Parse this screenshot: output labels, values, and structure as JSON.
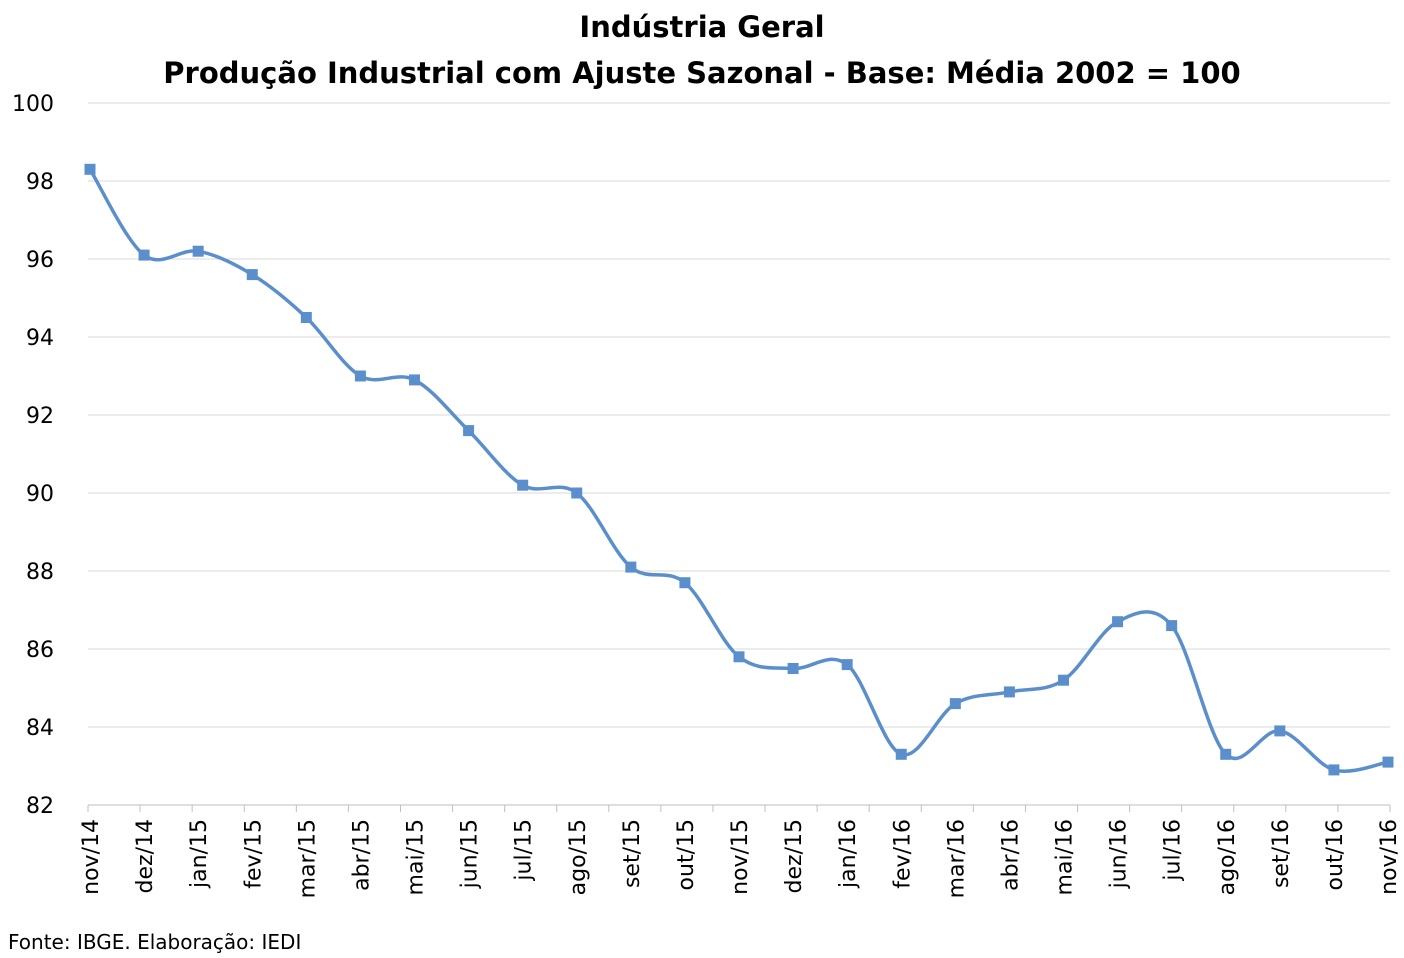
{
  "chart_data": {
    "type": "line",
    "title": "Indústria Geral",
    "subtitle": "Produção Industrial com Ajuste Sazonal - Base: Média 2002 = 100",
    "xlabel": "",
    "ylabel": "",
    "categories": [
      "nov/14",
      "dez/14",
      "jan/15",
      "fev/15",
      "mar/15",
      "abr/15",
      "mai/15",
      "jun/15",
      "jul/15",
      "ago/15",
      "set/15",
      "out/15",
      "nov/15",
      "dez/15",
      "jan/16",
      "fev/16",
      "mar/16",
      "abr/16",
      "mai/16",
      "jun/16",
      "jul/16",
      "ago/16",
      "set/16",
      "out/16",
      "nov/16"
    ],
    "series": [
      {
        "values": [
          98.3,
          96.1,
          96.2,
          95.6,
          94.5,
          93.0,
          92.9,
          91.6,
          90.2,
          90.0,
          88.1,
          87.7,
          85.8,
          85.5,
          85.6,
          83.3,
          84.6,
          84.9,
          85.2,
          86.7,
          86.6,
          83.3,
          83.9,
          82.9,
          83.1
        ],
        "color": "#5b8fcc"
      }
    ],
    "ylim": [
      82,
      100
    ],
    "yticks": [
      82,
      84,
      86,
      88,
      90,
      92,
      94,
      96,
      98,
      100
    ],
    "grid": true,
    "legend": "none",
    "smooth": true,
    "marker": "square"
  },
  "source": "Fonte: IBGE. Elaboração: IEDI"
}
